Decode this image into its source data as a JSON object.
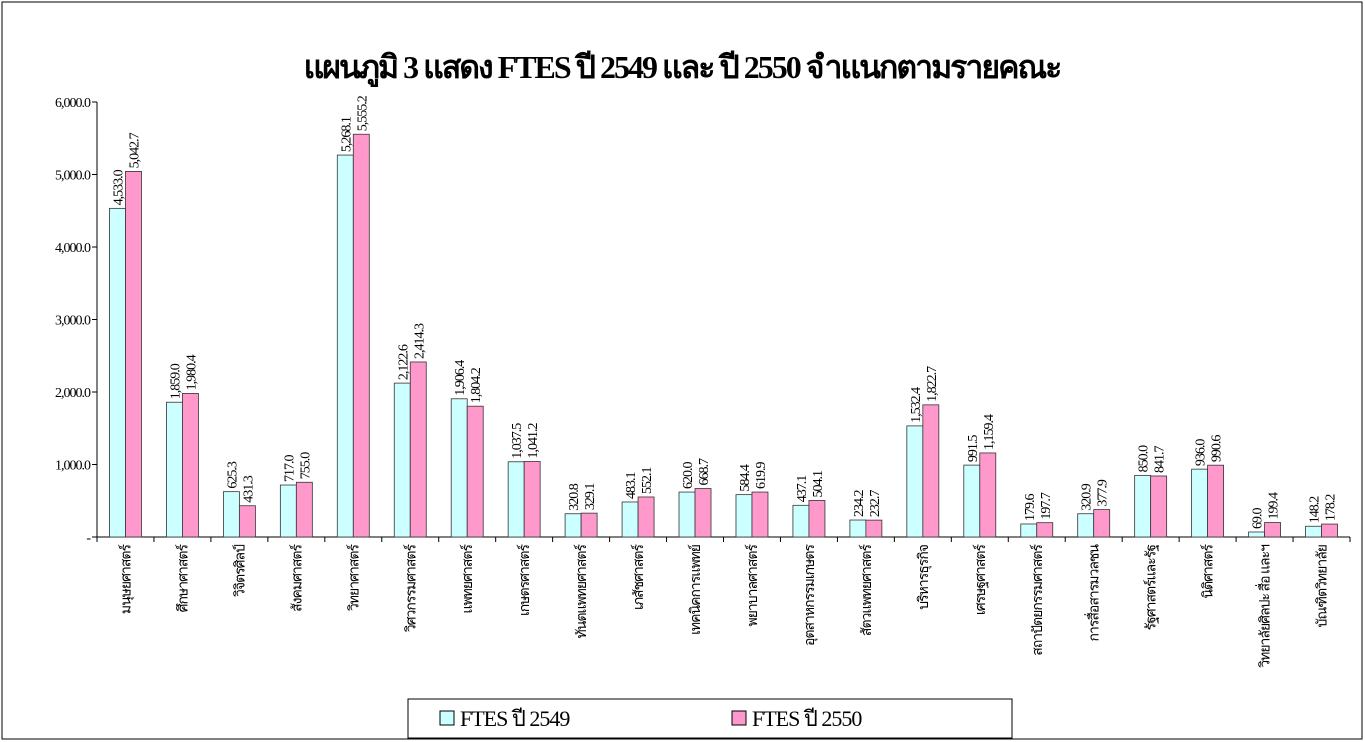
{
  "chart_data": {
    "type": "bar",
    "title": "แผนภูมิ 3 แสดง FTES ปี 2549 และ ปี 2550 จำแนกตามรายคณะ",
    "categories": [
      "มนุษยศาสตร์",
      "ศึกษาศาสตร์",
      "วิจิตรศิลป์",
      "สังคมศาสตร์",
      "วิทยาศาสตร์",
      "วิศวกรรมศาสตร์",
      "แพทยศาสตร์",
      "เกษตรศาสตร์",
      "ทันตแพทยศาสตร์",
      "เภสัชศาสตร์",
      "เทคนิคการแพทย์",
      "พยาบาลศาสตร์",
      "อุตสาหกรรมเกษตร",
      "สัตวแพทยศาสตร์",
      "บริหารธุรกิจ",
      "เศรษฐศาสตร์",
      "สถาปัตยกรรมศาสตร์",
      "การสื่อสารมวลชน",
      "รัฐศาสตร์และรัฐ",
      "นิติศาสตร์",
      "วิทยาลัยศิลปะ สื่อ และฯ",
      "บัณฑิตวิทยาลัย"
    ],
    "series": [
      {
        "name": "FTES ปี 2549",
        "color": "#ccffff",
        "values": [
          4533.0,
          1859.0,
          625.3,
          717.0,
          5268.1,
          2122.6,
          1906.4,
          1037.5,
          320.8,
          483.1,
          620.0,
          584.4,
          437.1,
          234.2,
          1532.4,
          991.5,
          179.6,
          320.9,
          850.0,
          936.0,
          69.0,
          148.2
        ],
        "value_labels": [
          "4,533.0",
          "1,859.0",
          "625.3",
          "717.0",
          "5,268.1",
          "2,122.6",
          "1,906.4",
          "1,037.5",
          "320.8",
          "483.1",
          "620.0",
          "584.4",
          "437.1",
          "234.2",
          "1,532.4",
          "991.5",
          "179.6",
          "320.9",
          "850.0",
          "936.0",
          "69.0",
          "148.2"
        ]
      },
      {
        "name": "FTES ปี 2550",
        "color": "#ff99cc",
        "values": [
          5042.7,
          1980.4,
          431.3,
          755.0,
          5555.2,
          2414.3,
          1804.2,
          1041.2,
          329.1,
          552.1,
          668.7,
          619.9,
          504.1,
          232.7,
          1822.7,
          1159.4,
          197.7,
          377.9,
          841.7,
          990.6,
          199.4,
          178.2
        ],
        "value_labels": [
          "5,042.7",
          "1,980.4",
          "431.3",
          "755.0",
          "5,555.2",
          "2,414.3",
          "1,804.2",
          "1,041.2",
          "329.1",
          "552.1",
          "668.7",
          "619.9",
          "504.1",
          "232.7",
          "1,822.7",
          "1,159.4",
          "197.7",
          "377.9",
          "841.7",
          "990.6",
          "199.4",
          "178.2"
        ]
      }
    ],
    "ylim": [
      0,
      6000
    ],
    "yticks": [
      {
        "value": 0,
        "label": "-"
      },
      {
        "value": 1000,
        "label": "1,000.0"
      },
      {
        "value": 2000,
        "label": "2,000.0"
      },
      {
        "value": 3000,
        "label": "3,000.0"
      },
      {
        "value": 4000,
        "label": "4,000.0"
      },
      {
        "value": 5000,
        "label": "5,000.0"
      },
      {
        "value": 6000,
        "label": "6,000.0"
      }
    ],
    "legend": "bottom"
  }
}
